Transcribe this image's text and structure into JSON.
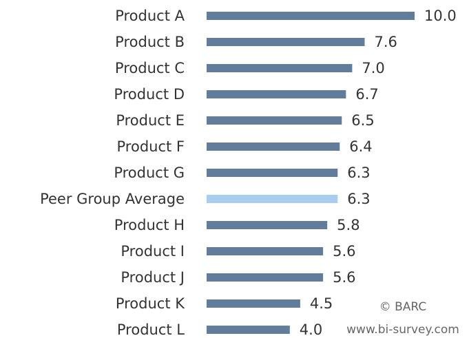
{
  "chart_data": {
    "type": "bar",
    "orientation": "horizontal",
    "categories": [
      "Product A",
      "Product B",
      "Product C",
      "Product D",
      "Product E",
      "Product F",
      "Product G",
      "Peer Group Average",
      "Product H",
      "Product I",
      "Product J",
      "Product K",
      "Product L"
    ],
    "values": [
      10,
      7.6,
      7,
      6.7,
      6.5,
      6.4,
      6.3,
      6.3,
      5.8,
      5.6,
      5.6,
      4.5,
      4
    ],
    "value_labels": [
      "10.0",
      "7.6",
      "7.0",
      "6.7",
      "6.5",
      "6.4",
      "6.3",
      "6.3",
      "5.8",
      "5.6",
      "5.6",
      "4.5",
      "4.0"
    ],
    "colors": [
      "#627d9b",
      "#627d9b",
      "#627d9b",
      "#627d9b",
      "#627d9b",
      "#627d9b",
      "#627d9b",
      "#a9cdee",
      "#627d9b",
      "#627d9b",
      "#627d9b",
      "#627d9b",
      "#627d9b"
    ],
    "xlim": [
      0,
      10
    ],
    "annotations": [
      "© BARC",
      "www.bi-survey.com"
    ]
  }
}
